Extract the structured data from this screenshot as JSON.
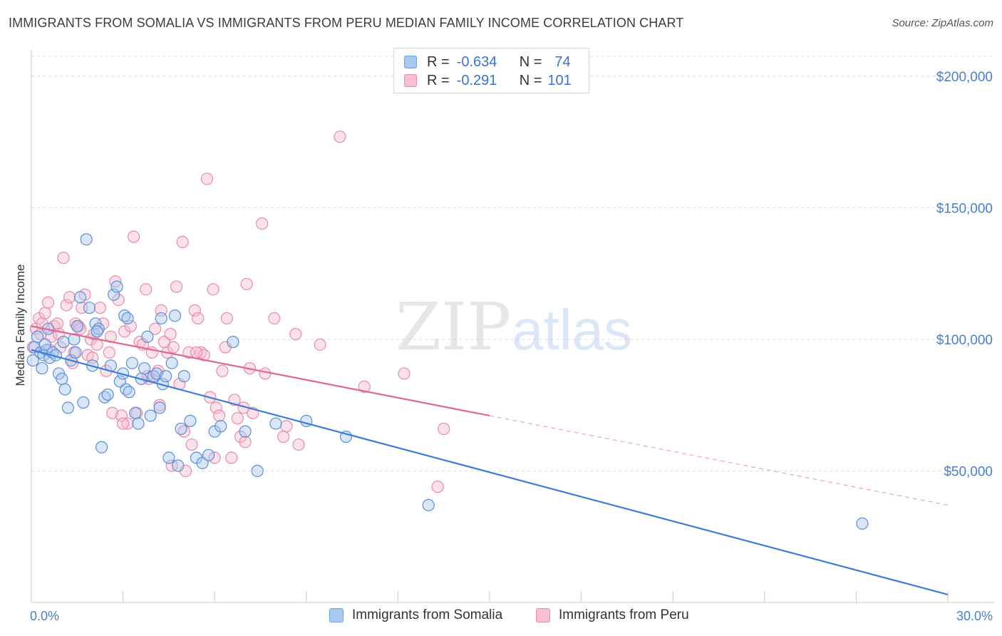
{
  "header": {
    "title": "IMMIGRANTS FROM SOMALIA VS IMMIGRANTS FROM PERU MEDIAN FAMILY INCOME CORRELATION CHART",
    "source": "Source: ZipAtlas.com"
  },
  "watermark": {
    "zip": "ZIP",
    "atlas": "atlas"
  },
  "legend": {
    "rows": [
      {
        "r_label": "R =",
        "r_value": "-0.634",
        "n_label": "N =",
        "n_value": "74",
        "color": "#a9c8f0",
        "border": "#6f9fe0"
      },
      {
        "r_label": "R =",
        "r_value": "-0.291",
        "n_label": "N =",
        "n_value": "101",
        "color": "#f7bfd0",
        "border": "#e88aa8"
      }
    ]
  },
  "bottom_legend": {
    "somalia": "Immigrants from Somalia",
    "peru": "Immigrants from Peru"
  },
  "chart_data": {
    "type": "scatter",
    "title": "IMMIGRANTS FROM SOMALIA VS IMMIGRANTS FROM PERU MEDIAN FAMILY INCOME CORRELATION CHART",
    "xlabel": "",
    "ylabel": "Median Family Income",
    "xlim": [
      0,
      30
    ],
    "ylim": [
      0,
      210000
    ],
    "x_tick_labels": [
      "0.0%",
      "30.0%"
    ],
    "y_ticks": [
      50000,
      100000,
      150000,
      200000
    ],
    "y_tick_labels": [
      "$50,000",
      "$100,000",
      "$150,000",
      "$200,000"
    ],
    "grid": "horizontal dashed",
    "colors": {
      "somalia": "#3b7dd8",
      "peru": "#e0688e",
      "somalia_fill": "#a9c8f0",
      "peru_fill": "#f7bfd0"
    },
    "series": [
      {
        "name": "Immigrants from Somalia",
        "key": "somalia",
        "trend": {
          "x": [
            0,
            30
          ],
          "y": [
            96000,
            3000
          ],
          "solid_to": 30
        },
        "points": [
          [
            0.05,
            92000
          ],
          [
            0.1,
            97000
          ],
          [
            0.2,
            101000
          ],
          [
            0.3,
            95000
          ],
          [
            0.4,
            94000
          ],
          [
            0.5,
            96000
          ],
          [
            0.6,
            93000
          ],
          [
            0.7,
            95000
          ],
          [
            0.8,
            94000
          ],
          [
            0.9,
            87000
          ],
          [
            1.0,
            85000
          ],
          [
            1.1,
            81000
          ],
          [
            1.2,
            74000
          ],
          [
            1.3,
            92000
          ],
          [
            1.4,
            100000
          ],
          [
            1.5,
            105000
          ],
          [
            1.6,
            116000
          ],
          [
            1.7,
            76000
          ],
          [
            1.8,
            138000
          ],
          [
            1.9,
            112000
          ],
          [
            2.0,
            90000
          ],
          [
            2.1,
            106000
          ],
          [
            2.2,
            104000
          ],
          [
            2.3,
            59000
          ],
          [
            2.4,
            78000
          ],
          [
            2.5,
            79000
          ],
          [
            2.6,
            90000
          ],
          [
            2.7,
            117000
          ],
          [
            2.8,
            120000
          ],
          [
            2.9,
            84000
          ],
          [
            3.0,
            87000
          ],
          [
            3.1,
            81000
          ],
          [
            3.2,
            80000
          ],
          [
            3.3,
            91000
          ],
          [
            3.4,
            72000
          ],
          [
            3.5,
            68000
          ],
          [
            3.6,
            85000
          ],
          [
            3.7,
            89000
          ],
          [
            3.8,
            101000
          ],
          [
            3.9,
            71000
          ],
          [
            4.0,
            86000
          ],
          [
            4.1,
            87000
          ],
          [
            4.2,
            74000
          ],
          [
            4.3,
            83000
          ],
          [
            4.4,
            86000
          ],
          [
            4.5,
            55000
          ],
          [
            4.6,
            91000
          ],
          [
            4.7,
            109000
          ],
          [
            4.8,
            52000
          ],
          [
            4.9,
            66000
          ],
          [
            5.0,
            86000
          ],
          [
            5.2,
            69000
          ],
          [
            5.4,
            55000
          ],
          [
            5.6,
            53000
          ],
          [
            5.8,
            56000
          ],
          [
            6.0,
            65000
          ],
          [
            6.2,
            67000
          ],
          [
            6.6,
            99000
          ],
          [
            7.0,
            65000
          ],
          [
            7.4,
            50000
          ],
          [
            8.0,
            68000
          ],
          [
            9.0,
            69000
          ],
          [
            10.3,
            63000
          ],
          [
            13.0,
            37000
          ],
          [
            27.2,
            30000
          ],
          [
            0.35,
            89000
          ],
          [
            0.45,
            98000
          ],
          [
            0.55,
            104000
          ],
          [
            1.05,
            99000
          ],
          [
            1.45,
            95000
          ],
          [
            2.15,
            103000
          ],
          [
            3.05,
            109000
          ],
          [
            3.15,
            108000
          ],
          [
            4.25,
            108000
          ]
        ]
      },
      {
        "name": "Immigrants from Peru",
        "key": "peru",
        "trend": {
          "x": [
            0,
            30
          ],
          "y": [
            105000,
            37000
          ],
          "solid_to": 15
        },
        "points": [
          [
            0.05,
            97000
          ],
          [
            0.15,
            104000
          ],
          [
            0.25,
            108000
          ],
          [
            0.35,
            106000
          ],
          [
            0.45,
            110000
          ],
          [
            0.55,
            114000
          ],
          [
            0.65,
            101000
          ],
          [
            0.75,
            105000
          ],
          [
            0.85,
            106000
          ],
          [
            0.95,
            97000
          ],
          [
            1.05,
            131000
          ],
          [
            1.15,
            113000
          ],
          [
            1.25,
            116000
          ],
          [
            1.35,
            91000
          ],
          [
            1.45,
            106000
          ],
          [
            1.55,
            105000
          ],
          [
            1.65,
            112000
          ],
          [
            1.75,
            117000
          ],
          [
            1.85,
            94000
          ],
          [
            1.95,
            100000
          ],
          [
            2.05,
            102000
          ],
          [
            2.15,
            98000
          ],
          [
            2.25,
            112000
          ],
          [
            2.35,
            106000
          ],
          [
            2.45,
            88000
          ],
          [
            2.55,
            95000
          ],
          [
            2.65,
            72000
          ],
          [
            2.75,
            122000
          ],
          [
            2.85,
            115000
          ],
          [
            2.95,
            71000
          ],
          [
            3.05,
            103000
          ],
          [
            3.15,
            68000
          ],
          [
            3.25,
            105000
          ],
          [
            3.35,
            139000
          ],
          [
            3.45,
            72000
          ],
          [
            3.55,
            99000
          ],
          [
            3.65,
            98000
          ],
          [
            3.75,
            119000
          ],
          [
            3.85,
            85000
          ],
          [
            3.95,
            95000
          ],
          [
            4.05,
            104000
          ],
          [
            4.15,
            88000
          ],
          [
            4.25,
            111000
          ],
          [
            4.35,
            99000
          ],
          [
            4.45,
            95000
          ],
          [
            4.55,
            102000
          ],
          [
            4.65,
            97000
          ],
          [
            4.75,
            120000
          ],
          [
            4.85,
            83000
          ],
          [
            4.95,
            137000
          ],
          [
            5.05,
            50000
          ],
          [
            5.15,
            95000
          ],
          [
            5.25,
            60000
          ],
          [
            5.35,
            111000
          ],
          [
            5.45,
            108000
          ],
          [
            5.55,
            95000
          ],
          [
            5.65,
            94000
          ],
          [
            5.75,
            161000
          ],
          [
            5.85,
            78000
          ],
          [
            5.95,
            119000
          ],
          [
            6.05,
            74000
          ],
          [
            6.15,
            71000
          ],
          [
            6.25,
            88000
          ],
          [
            6.35,
            97000
          ],
          [
            6.55,
            55000
          ],
          [
            6.65,
            77000
          ],
          [
            6.75,
            70000
          ],
          [
            6.85,
            63000
          ],
          [
            6.95,
            74000
          ],
          [
            7.05,
            121000
          ],
          [
            7.15,
            89000
          ],
          [
            7.25,
            72000
          ],
          [
            7.55,
            144000
          ],
          [
            7.65,
            87000
          ],
          [
            7.95,
            108000
          ],
          [
            8.25,
            63000
          ],
          [
            8.35,
            67000
          ],
          [
            8.65,
            102000
          ],
          [
            8.75,
            60000
          ],
          [
            9.45,
            98000
          ],
          [
            10.1,
            177000
          ],
          [
            10.9,
            82000
          ],
          [
            12.2,
            87000
          ],
          [
            13.3,
            44000
          ],
          [
            13.5,
            66000
          ],
          [
            0.3,
            102000
          ],
          [
            0.6,
            96000
          ],
          [
            1.4,
            95000
          ],
          [
            2.0,
            93000
          ],
          [
            3.0,
            68000
          ],
          [
            3.8,
            86000
          ],
          [
            4.2,
            75000
          ],
          [
            4.6,
            52000
          ],
          [
            5.0,
            65000
          ],
          [
            5.4,
            95000
          ],
          [
            6.0,
            55000
          ],
          [
            6.4,
            108000
          ],
          [
            7.0,
            61000
          ],
          [
            1.6,
            104000
          ],
          [
            2.6,
            101000
          ],
          [
            0.9,
            102000
          ]
        ]
      }
    ]
  }
}
